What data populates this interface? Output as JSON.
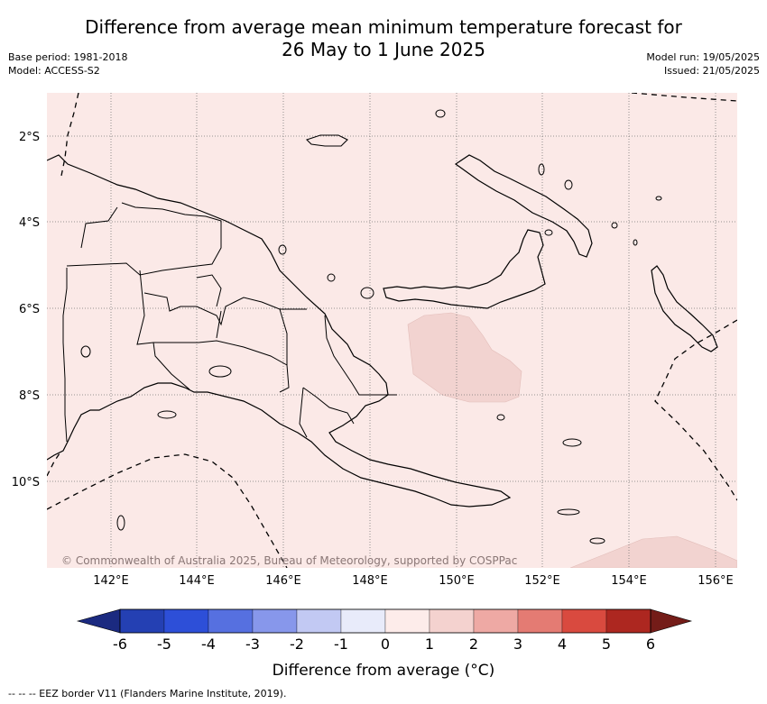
{
  "header": {
    "title_line1": "Difference from average mean minimum temperature forecast for",
    "title_line2": "26 May to 1 June 2025",
    "base_period": "Base period: 1981-2018",
    "model": "Model: ACCESS-S2",
    "model_run": "Model run: 19/05/2025",
    "issued": "Issued: 21/05/2025"
  },
  "map": {
    "longitude_ticks": [
      "142°E",
      "144°E",
      "146°E",
      "148°E",
      "150°E",
      "152°E",
      "154°E",
      "156°E"
    ],
    "latitude_ticks": [
      "2°S",
      "4°S",
      "6°S",
      "8°S",
      "10°S"
    ],
    "copyright": "© Commonwealth of Australia 2025, Bureau of Meteorology, supported by COSPPac",
    "background_fill": "#fbe9e7",
    "patch_fill": "#f2d3d0"
  },
  "colorbar": {
    "title": "Difference from average (°C)",
    "ticks": [
      "-6",
      "-5",
      "-4",
      "-3",
      "-2",
      "-1",
      "0",
      "1",
      "2",
      "3",
      "4",
      "5",
      "6"
    ],
    "colors": [
      "#1b2a80",
      "#2440b3",
      "#2d4fd8",
      "#5670e0",
      "#8797eb",
      "#c2c9f3",
      "#e8ebfa",
      "#fdecea",
      "#f4d2cf",
      "#eea9a4",
      "#e47b73",
      "#d94a3f",
      "#ad2720",
      "#741c18"
    ]
  },
  "footer": {
    "legend": "--  --  -- EEZ border V11 (Flanders Marine Institute, 2019)."
  }
}
